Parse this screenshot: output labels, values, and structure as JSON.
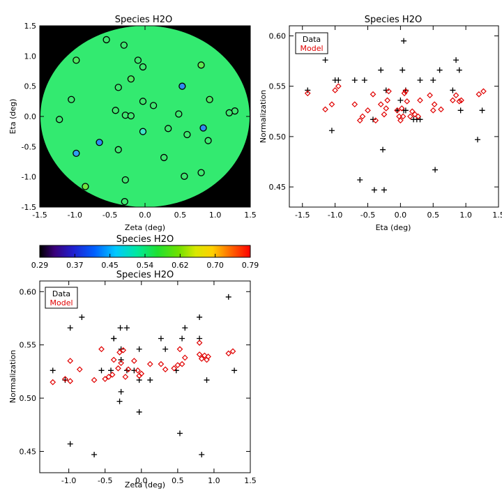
{
  "chart_data": [
    {
      "id": "map",
      "type": "scatter",
      "title": "Species H2O",
      "xlabel": "Zeta (deg)",
      "ylabel": "Eta (deg)",
      "xlim": [
        -1.5,
        1.5
      ],
      "ylim": [
        -1.5,
        1.5
      ],
      "x_ticks": [
        "-1.5",
        "-1.0",
        "-0.5",
        "0.0",
        "0.5",
        "1.0",
        "1.5"
      ],
      "y_ticks": [
        "-1.5",
        "-1.0",
        "-0.5",
        "0.0",
        "0.5",
        "1.0",
        "1.5"
      ],
      "background_color": "#000000",
      "field_color": "#33ea70",
      "points": [
        {
          "x": -0.55,
          "y": 1.27,
          "c": "#3fe870"
        },
        {
          "x": -0.3,
          "y": 1.18,
          "c": "#3fe870"
        },
        {
          "x": -0.98,
          "y": 0.93,
          "c": "#50e860"
        },
        {
          "x": -0.1,
          "y": 0.93,
          "c": "#3fe870"
        },
        {
          "x": -0.03,
          "y": 0.82,
          "c": "#3fe870"
        },
        {
          "x": 0.8,
          "y": 0.85,
          "c": "#60e850"
        },
        {
          "x": -0.2,
          "y": 0.62,
          "c": "#50e860"
        },
        {
          "x": -0.38,
          "y": 0.48,
          "c": "#3fe870"
        },
        {
          "x": 0.53,
          "y": 0.5,
          "c": "#2f8cf0"
        },
        {
          "x": -1.05,
          "y": 0.28,
          "c": "#3fe870"
        },
        {
          "x": 0.92,
          "y": 0.28,
          "c": "#50e860"
        },
        {
          "x": -0.03,
          "y": 0.25,
          "c": "#3fe870"
        },
        {
          "x": 0.12,
          "y": 0.18,
          "c": "#3fe870"
        },
        {
          "x": -0.42,
          "y": 0.1,
          "c": "#3fe870"
        },
        {
          "x": 1.28,
          "y": 0.09,
          "c": "#3fe870"
        },
        {
          "x": 1.2,
          "y": 0.06,
          "c": "#3fe870"
        },
        {
          "x": 0.48,
          "y": 0.04,
          "c": "#3fe870"
        },
        {
          "x": -0.28,
          "y": 0.02,
          "c": "#3fe870"
        },
        {
          "x": -0.2,
          "y": 0.01,
          "c": "#3fe870"
        },
        {
          "x": -1.22,
          "y": -0.05,
          "c": "#3fe870"
        },
        {
          "x": 0.33,
          "y": -0.2,
          "c": "#3fe870"
        },
        {
          "x": 0.83,
          "y": -0.19,
          "c": "#2f8cf0"
        },
        {
          "x": -0.03,
          "y": -0.25,
          "c": "#3fe8c8"
        },
        {
          "x": 0.6,
          "y": -0.3,
          "c": "#3fe870"
        },
        {
          "x": -0.65,
          "y": -0.43,
          "c": "#2f8cf0"
        },
        {
          "x": 0.9,
          "y": -0.4,
          "c": "#3fe870"
        },
        {
          "x": -0.38,
          "y": -0.55,
          "c": "#3fe870"
        },
        {
          "x": -0.98,
          "y": -0.61,
          "c": "#2fa0f0"
        },
        {
          "x": 0.27,
          "y": -0.68,
          "c": "#3fe870"
        },
        {
          "x": 0.8,
          "y": -0.93,
          "c": "#3fe870"
        },
        {
          "x": 0.56,
          "y": -0.99,
          "c": "#3fe870"
        },
        {
          "x": -0.28,
          "y": -1.05,
          "c": "#3fe870"
        },
        {
          "x": -0.85,
          "y": -1.16,
          "c": "#6ee840"
        },
        {
          "x": -0.29,
          "y": -1.41,
          "c": "#3fe870"
        }
      ]
    },
    {
      "id": "colorbar",
      "type": "heatmap",
      "title": "Species H2O",
      "tick_labels": [
        "0.29",
        "0.37",
        "0.45",
        "0.54",
        "0.62",
        "0.70",
        "0.79"
      ],
      "range": [
        0.29,
        0.79
      ]
    },
    {
      "id": "eta",
      "type": "scatter",
      "title": "Species H2O",
      "xlabel": "Eta (deg)",
      "ylabel": "Normalization",
      "xlim": [
        -1.7,
        1.5
      ],
      "ylim": [
        0.43,
        0.61
      ],
      "x_ticks": [
        -1.5,
        -1.0,
        -0.5,
        0.0,
        0.5,
        1.0,
        1.5
      ],
      "y_ticks": [
        0.45,
        0.5,
        0.55,
        0.6
      ],
      "x_tick_labels": [
        "-1.5",
        "-1.0",
        "-0.5",
        "0.0",
        "0.5",
        "1.0",
        "1.5"
      ],
      "y_tick_labels": [
        "0.45",
        "0.50",
        "0.55",
        "0.60"
      ],
      "legend": {
        "position": "top-left",
        "entries": [
          "Data",
          "Model"
        ]
      },
      "series": [
        {
          "name": "Data",
          "marker": "plus",
          "color": "#000000",
          "x": [
            -1.42,
            -1.15,
            -1.05,
            -1.0,
            -0.95,
            -0.62,
            -0.7,
            -0.55,
            -0.42,
            -0.4,
            -0.3,
            -0.27,
            -0.22,
            -0.25,
            -0.05,
            0.05,
            0.0,
            0.03,
            0.05,
            0.08,
            0.08,
            0.2,
            0.25,
            0.3,
            0.3,
            0.5,
            0.53,
            0.6,
            0.8,
            0.85,
            0.9,
            0.92,
            1.18,
            1.25
          ],
          "y": [
            0.546,
            0.576,
            0.506,
            0.556,
            0.556,
            0.457,
            0.556,
            0.556,
            0.517,
            0.447,
            0.566,
            0.487,
            0.546,
            0.447,
            0.526,
            0.595,
            0.536,
            0.566,
            0.526,
            0.546,
            0.526,
            0.517,
            0.517,
            0.517,
            0.556,
            0.556,
            0.467,
            0.566,
            0.546,
            0.576,
            0.566,
            0.526,
            0.497,
            0.526
          ]
        },
        {
          "name": "Model",
          "marker": "diamond",
          "color": "#e00000",
          "x": [
            -1.42,
            -1.15,
            -1.05,
            -1.0,
            -0.95,
            -0.7,
            -0.62,
            -0.58,
            -0.5,
            -0.42,
            -0.38,
            -0.3,
            -0.25,
            -0.22,
            -0.2,
            -0.18,
            -0.05,
            -0.02,
            0.0,
            0.02,
            0.04,
            0.06,
            0.08,
            0.1,
            0.15,
            0.18,
            0.22,
            0.27,
            0.3,
            0.45,
            0.5,
            0.52,
            0.62,
            0.8,
            0.85,
            0.9,
            0.93,
            1.2,
            1.27
          ],
          "y": [
            0.543,
            0.527,
            0.532,
            0.546,
            0.55,
            0.532,
            0.516,
            0.52,
            0.526,
            0.542,
            0.516,
            0.532,
            0.522,
            0.528,
            0.536,
            0.545,
            0.526,
            0.52,
            0.516,
            0.528,
            0.52,
            0.543,
            0.545,
            0.535,
            0.52,
            0.525,
            0.522,
            0.52,
            0.536,
            0.541,
            0.526,
            0.532,
            0.527,
            0.536,
            0.541,
            0.535,
            0.536,
            0.542,
            0.545
          ]
        }
      ]
    },
    {
      "id": "zeta",
      "type": "scatter",
      "title": "Species H2O",
      "xlabel": "Zeta (deg)",
      "ylabel": "Normalization",
      "xlim": [
        -1.4,
        1.5
      ],
      "ylim": [
        0.43,
        0.61
      ],
      "x_ticks": [
        -1.0,
        -0.5,
        0.0,
        0.5,
        1.0,
        1.5
      ],
      "y_ticks": [
        0.45,
        0.5,
        0.55,
        0.6
      ],
      "x_tick_labels": [
        "-1.0",
        "-0.5",
        "0.0",
        "0.5",
        "1.0",
        "1.5"
      ],
      "y_tick_labels": [
        "0.45",
        "0.50",
        "0.55",
        "0.60"
      ],
      "legend": {
        "position": "top-left",
        "entries": [
          "Data",
          "Model"
        ]
      },
      "series": [
        {
          "name": "Data",
          "marker": "plus",
          "color": "#000000",
          "x": [
            -1.22,
            -1.05,
            -0.98,
            -0.98,
            -0.82,
            -0.65,
            -0.55,
            -0.42,
            -0.38,
            -0.38,
            -0.3,
            -0.29,
            -0.28,
            -0.28,
            -0.28,
            -0.2,
            -0.2,
            -0.1,
            -0.03,
            -0.03,
            -0.03,
            0.12,
            0.27,
            0.33,
            0.48,
            0.53,
            0.56,
            0.6,
            0.8,
            0.8,
            0.83,
            0.9,
            1.2,
            1.28
          ],
          "y": [
            0.526,
            0.517,
            0.457,
            0.566,
            0.576,
            0.447,
            0.526,
            0.526,
            0.556,
            0.556,
            0.497,
            0.566,
            0.546,
            0.536,
            0.506,
            0.566,
            0.526,
            0.526,
            0.546,
            0.517,
            0.487,
            0.517,
            0.556,
            0.546,
            0.526,
            0.467,
            0.556,
            0.566,
            0.576,
            0.556,
            0.447,
            0.517,
            0.595,
            0.526
          ]
        },
        {
          "name": "Model",
          "marker": "diamond",
          "color": "#e00000",
          "x": [
            -1.22,
            -1.05,
            -0.98,
            -0.98,
            -0.85,
            -0.65,
            -0.55,
            -0.5,
            -0.45,
            -0.4,
            -0.38,
            -0.32,
            -0.3,
            -0.28,
            -0.25,
            -0.22,
            -0.18,
            -0.1,
            -0.05,
            -0.03,
            0.0,
            0.12,
            0.27,
            0.33,
            0.45,
            0.5,
            0.53,
            0.56,
            0.6,
            0.8,
            0.8,
            0.83,
            0.87,
            0.9,
            0.92,
            1.2,
            1.26
          ],
          "y": [
            0.515,
            0.518,
            0.535,
            0.516,
            0.527,
            0.517,
            0.546,
            0.518,
            0.52,
            0.522,
            0.536,
            0.528,
            0.543,
            0.533,
            0.545,
            0.52,
            0.527,
            0.535,
            0.526,
            0.521,
            0.523,
            0.532,
            0.532,
            0.527,
            0.528,
            0.531,
            0.546,
            0.532,
            0.538,
            0.541,
            0.552,
            0.537,
            0.54,
            0.536,
            0.539,
            0.542,
            0.544
          ]
        }
      ]
    }
  ]
}
